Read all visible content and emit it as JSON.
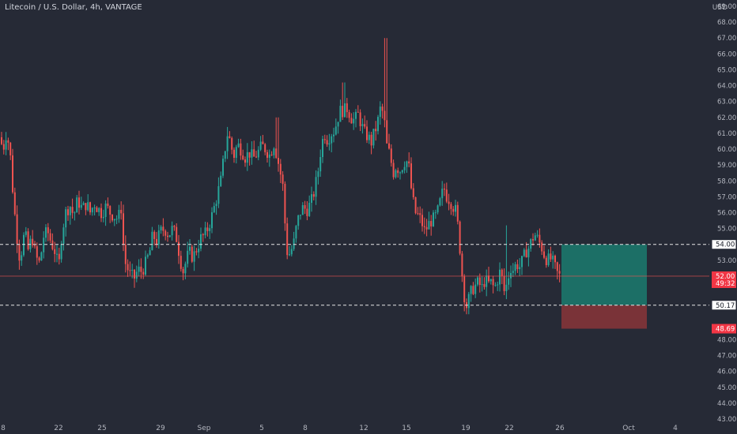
{
  "header": {
    "title": "Litecoin / U.S. Dollar, 4h, VANTAGE",
    "currency": "USD"
  },
  "colors": {
    "background": "#262a36",
    "up": "#26a69a",
    "down": "#ef5350",
    "text": "#b2b5be",
    "profit_zone": "#1c6f66",
    "loss_zone": "#7a3338",
    "price_line": "#ef5350",
    "level_line": "#e6e6e6"
  },
  "chart_data": {
    "type": "candlestick",
    "title": "Litecoin / U.S. Dollar, 4h, VANTAGE",
    "xlabel": "",
    "ylabel": "USD",
    "ylim": [
      43,
      69
    ],
    "x_ticks": [
      "8",
      "22",
      "25",
      "29",
      "Sep",
      "5",
      "8",
      "12",
      "15",
      "19",
      "22",
      "26",
      "Oct",
      "4"
    ],
    "y_ticks": [
      "43.00",
      "44.00",
      "45.00",
      "46.00",
      "47.00",
      "48.00",
      "49.00",
      "50.00",
      "51.00",
      "52.00",
      "53.00",
      "54.00",
      "55.00",
      "56.00",
      "57.00",
      "58.00",
      "59.00",
      "60.00",
      "61.00",
      "62.00",
      "63.00",
      "64.00",
      "65.00",
      "66.00",
      "67.00",
      "68.00",
      "69.00"
    ],
    "grid": false,
    "current_price": {
      "value": 52.0,
      "label": "52.00",
      "countdown": "49:32"
    },
    "levels": [
      {
        "value": 54.0,
        "label": "54.00",
        "style": "dashed"
      },
      {
        "value": 50.17,
        "label": "50.17",
        "style": "dashed"
      }
    ],
    "position": {
      "type": "long",
      "entry": 50.17,
      "target": 54.0,
      "stop": 48.69,
      "stop_label": "48.69"
    },
    "price_path": [
      [
        0,
        60.9
      ],
      [
        6,
        60.0
      ],
      [
        9,
        61.0
      ],
      [
        14,
        60.2
      ],
      [
        17,
        58.0
      ],
      [
        22,
        55.0
      ],
      [
        27,
        53.0
      ],
      [
        33,
        54.8
      ],
      [
        38,
        53.5
      ],
      [
        42,
        54.6
      ],
      [
        47,
        53.2
      ],
      [
        52,
        52.8
      ],
      [
        57,
        54.5
      ],
      [
        62,
        54.8
      ],
      [
        66,
        54.2
      ],
      [
        71,
        53.6
      ],
      [
        76,
        52.5
      ],
      [
        80,
        54.8
      ],
      [
        85,
        56.0
      ],
      [
        90,
        56.5
      ],
      [
        95,
        55.8
      ],
      [
        100,
        56.8
      ],
      [
        106,
        56.2
      ],
      [
        111,
        56.6
      ],
      [
        116,
        56.0
      ],
      [
        121,
        56.6
      ],
      [
        125,
        56.3
      ],
      [
        130,
        56.0
      ],
      [
        136,
        56.4
      ],
      [
        141,
        56.0
      ],
      [
        146,
        55.8
      ],
      [
        151,
        55.6
      ],
      [
        155,
        56.3
      ],
      [
        159,
        53.0
      ],
      [
        163,
        52.5
      ],
      [
        167,
        52.0
      ],
      [
        172,
        51.9
      ],
      [
        176,
        52.4
      ],
      [
        181,
        52.3
      ],
      [
        186,
        52.8
      ],
      [
        191,
        53.5
      ],
      [
        195,
        54.6
      ],
      [
        200,
        54.2
      ],
      [
        205,
        54.8
      ],
      [
        210,
        55.0
      ],
      [
        215,
        54.6
      ],
      [
        220,
        55.0
      ],
      [
        225,
        54.4
      ],
      [
        230,
        53.0
      ],
      [
        234,
        52.2
      ],
      [
        237,
        53.0
      ],
      [
        241,
        53.5
      ],
      [
        246,
        53.2
      ],
      [
        251,
        53.8
      ],
      [
        256,
        54.4
      ],
      [
        261,
        54.6
      ],
      [
        266,
        55.2
      ],
      [
        271,
        56.0
      ],
      [
        276,
        57.0
      ],
      [
        281,
        58.0
      ],
      [
        285,
        59.5
      ],
      [
        289,
        61.0
      ],
      [
        293,
        60.5
      ],
      [
        297,
        59.5
      ],
      [
        302,
        60.3
      ],
      [
        307,
        60.0
      ],
      [
        312,
        59.5
      ],
      [
        317,
        59.8
      ],
      [
        322,
        59.4
      ],
      [
        328,
        59.8
      ],
      [
        333,
        60.2
      ],
      [
        338,
        60.0
      ],
      [
        343,
        59.6
      ],
      [
        348,
        60.4
      ],
      [
        352,
        59.6
      ],
      [
        356,
        58.6
      ],
      [
        360,
        57.5
      ],
      [
        364,
        53.6
      ],
      [
        368,
        53.4
      ],
      [
        373,
        54.0
      ],
      [
        377,
        55.2
      ],
      [
        381,
        56.0
      ],
      [
        385,
        56.3
      ],
      [
        390,
        56.2
      ],
      [
        395,
        56.6
      ],
      [
        400,
        57.5
      ],
      [
        404,
        58.6
      ],
      [
        408,
        60.2
      ],
      [
        412,
        61.0
      ],
      [
        416,
        60.6
      ],
      [
        420,
        61.0
      ],
      [
        425,
        61.2
      ],
      [
        429,
        62.0
      ],
      [
        433,
        62.5
      ],
      [
        437,
        62.4
      ],
      [
        441,
        62.6
      ],
      [
        446,
        62.0
      ],
      [
        450,
        61.8
      ],
      [
        455,
        62.2
      ],
      [
        459,
        61.5
      ],
      [
        463,
        61.0
      ],
      [
        467,
        60.8
      ],
      [
        471,
        60.4
      ],
      [
        475,
        61.0
      ],
      [
        479,
        61.6
      ],
      [
        483,
        62.6
      ],
      [
        487,
        62.2
      ],
      [
        491,
        60.2
      ],
      [
        495,
        59.6
      ],
      [
        499,
        58.5
      ],
      [
        503,
        59.0
      ],
      [
        507,
        58.6
      ],
      [
        511,
        59.0
      ],
      [
        515,
        59.4
      ],
      [
        519,
        58.8
      ],
      [
        523,
        57.0
      ],
      [
        527,
        56.0
      ],
      [
        531,
        55.8
      ],
      [
        535,
        55.4
      ],
      [
        539,
        54.8
      ],
      [
        543,
        55.2
      ],
      [
        547,
        55.5
      ],
      [
        551,
        55.6
      ],
      [
        555,
        56.0
      ],
      [
        559,
        56.8
      ],
      [
        563,
        57.6
      ],
      [
        567,
        57.0
      ],
      [
        571,
        56.8
      ],
      [
        575,
        56.4
      ],
      [
        579,
        56.0
      ],
      [
        583,
        54.0
      ],
      [
        587,
        51.6
      ],
      [
        591,
        50.0
      ],
      [
        595,
        50.6
      ],
      [
        599,
        51.2
      ],
      [
        603,
        51.4
      ],
      [
        607,
        51.6
      ],
      [
        611,
        51.2
      ],
      [
        615,
        51.8
      ],
      [
        619,
        51.5
      ],
      [
        623,
        51.6
      ],
      [
        627,
        51.2
      ],
      [
        631,
        51.8
      ],
      [
        635,
        52.4
      ],
      [
        639,
        51.0
      ],
      [
        643,
        51.5
      ],
      [
        647,
        52.6
      ],
      [
        651,
        52.4
      ],
      [
        655,
        52.8
      ],
      [
        659,
        52.6
      ],
      [
        663,
        53.0
      ],
      [
        667,
        53.6
      ],
      [
        671,
        53.8
      ],
      [
        675,
        54.4
      ],
      [
        679,
        54.6
      ],
      [
        683,
        54.2
      ],
      [
        687,
        53.8
      ],
      [
        691,
        53.2
      ],
      [
        695,
        53.0
      ],
      [
        699,
        53.1
      ],
      [
        703,
        52.6
      ],
      [
        708,
        52.0
      ]
    ],
    "price_axis_labels": [
      "52.00",
      "49:32",
      "54.00",
      "50.17",
      "48.69"
    ]
  }
}
